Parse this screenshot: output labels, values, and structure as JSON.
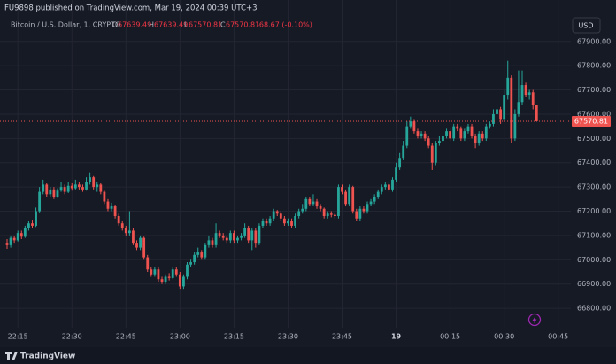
{
  "published_by": "FU9898 published on TradingView.com, Mar 19, 2024 00:39 UTC+3",
  "footer_brand": "TradingView",
  "chart_data": {
    "type": "candlestick",
    "title": "Bitcoin / U.S. Dollar, 1, CRYPTO",
    "ohlc_letters": [
      "O",
      "H",
      "L",
      "C"
    ],
    "change": "-68.67 (-0.10%)",
    "currency": "USD",
    "up_color": "#26a69a",
    "down_color": "#ef5350",
    "grid": true,
    "x": [
      "22:12",
      "22:13",
      "22:14",
      "22:15",
      "22:16",
      "22:17",
      "22:18",
      "22:19",
      "22:20",
      "22:21",
      "22:22",
      "22:23",
      "22:24",
      "22:25",
      "22:26",
      "22:27",
      "22:28",
      "22:29",
      "22:30",
      "22:31",
      "22:32",
      "22:33",
      "22:34",
      "22:35",
      "22:36",
      "22:37",
      "22:38",
      "22:39",
      "22:40",
      "22:41",
      "22:42",
      "22:43",
      "22:44",
      "22:45",
      "22:46",
      "22:47",
      "22:48",
      "22:49",
      "22:50",
      "22:51",
      "22:52",
      "22:53",
      "22:54",
      "22:55",
      "22:56",
      "22:57",
      "22:58",
      "22:59",
      "23:00",
      "23:01",
      "23:02",
      "23:03",
      "23:04",
      "23:05",
      "23:06",
      "23:07",
      "23:08",
      "23:09",
      "23:10",
      "23:11",
      "23:12",
      "23:13",
      "23:14",
      "23:15",
      "23:16",
      "23:17",
      "23:18",
      "23:19",
      "23:20",
      "23:21",
      "23:22",
      "23:23",
      "23:24",
      "23:25",
      "23:26",
      "23:27",
      "23:28",
      "23:29",
      "23:30",
      "23:31",
      "23:32",
      "23:33",
      "23:34",
      "23:35",
      "23:36",
      "23:37",
      "23:38",
      "23:39",
      "23:40",
      "23:41",
      "23:42",
      "23:43",
      "23:44",
      "23:45",
      "23:46",
      "23:47",
      "23:48",
      "23:49",
      "23:50",
      "23:51",
      "23:52",
      "23:53",
      "23:54",
      "23:55",
      "23:56",
      "23:57",
      "23:58",
      "23:59",
      "00:00",
      "00:01",
      "00:02",
      "00:03",
      "00:04",
      "00:05",
      "00:06",
      "00:07",
      "00:08",
      "00:09",
      "00:10",
      "00:11",
      "00:12",
      "00:13",
      "00:14",
      "00:15",
      "00:16",
      "00:17",
      "00:18",
      "00:19",
      "00:20",
      "00:21",
      "00:22",
      "00:23",
      "00:24",
      "00:25",
      "00:26",
      "00:27",
      "00:28",
      "00:29",
      "00:30",
      "00:31",
      "00:32",
      "00:33",
      "00:34",
      "00:35",
      "00:36",
      "00:37",
      "00:38",
      "00:39"
    ],
    "open": [
      67070,
      67060,
      67090,
      67080,
      67110,
      67095,
      67130,
      67150,
      67140,
      67200,
      67280,
      67310,
      67270,
      67290,
      67260,
      67285,
      67300,
      67280,
      67305,
      67295,
      67310,
      67300,
      67290,
      67320,
      67340,
      67300,
      67310,
      67280,
      67240,
      67210,
      67220,
      67180,
      67150,
      67130,
      67110,
      67120,
      67070,
      67050,
      67090,
      67010,
      66960,
      66940,
      66960,
      66920,
      66910,
      66930,
      66925,
      66960,
      66940,
      66890,
      66930,
      66980,
      66990,
      67020,
      67030,
      67010,
      67060,
      67080,
      67060,
      67110,
      67100,
      67090,
      67080,
      67110,
      67080,
      67090,
      67100,
      67130,
      67080,
      67120,
      67070,
      67140,
      67160,
      67150,
      67170,
      67200,
      67190,
      67170,
      67150,
      67160,
      67140,
      67180,
      67200,
      67210,
      67250,
      67230,
      67240,
      67220,
      67210,
      67180,
      67190,
      67185,
      67180,
      67300,
      67280,
      67230,
      67300,
      67200,
      67170,
      67210,
      67200,
      67230,
      67240,
      67260,
      67280,
      67300,
      67310,
      67290,
      67330,
      67380,
      67420,
      67470,
      67550,
      67570,
      67530,
      67510,
      67520,
      67500,
      67470,
      67400,
      67480,
      67490,
      67510,
      67530,
      67500,
      67550,
      67540,
      67500,
      67530,
      67550,
      67510,
      67480,
      67520,
      67500,
      67550,
      67560,
      67600,
      67620,
      67580,
      67680,
      67750,
      67500,
      67600,
      67650,
      67720,
      67680,
      67690,
      67639.49
    ],
    "high": [
      67085,
      67100,
      67100,
      67120,
      67120,
      67140,
      67160,
      67165,
      67215,
      67300,
      67330,
      67315,
      67300,
      67300,
      67295,
      67320,
      67310,
      67320,
      67315,
      67330,
      67320,
      67310,
      67340,
      67360,
      67345,
      67320,
      67315,
      67285,
      67250,
      67235,
      67225,
      67190,
      67160,
      67140,
      67200,
      67130,
      67080,
      67100,
      67095,
      67020,
      66970,
      66970,
      66970,
      66930,
      66940,
      66945,
      66970,
      66970,
      66950,
      66940,
      66990,
      67000,
      67030,
      67050,
      67040,
      67070,
      67100,
      67090,
      67150,
      67120,
      67110,
      67100,
      67120,
      67120,
      67100,
      67110,
      67150,
      67140,
      67130,
      67130,
      67150,
      67170,
      67170,
      67180,
      67210,
      67205,
      67200,
      67180,
      67170,
      67170,
      67190,
      67210,
      67230,
      67260,
      67260,
      67270,
      67250,
      67230,
      67215,
      67200,
      67200,
      67195,
      67310,
      67310,
      67290,
      67310,
      67305,
      67210,
      67220,
      67220,
      67240,
      67250,
      67270,
      67290,
      67310,
      67320,
      67320,
      67340,
      67400,
      67440,
      67490,
      67570,
      67590,
      67580,
      67540,
      67530,
      67530,
      67510,
      67480,
      67490,
      67510,
      67520,
      67540,
      67540,
      67560,
      67560,
      67550,
      67540,
      67560,
      67560,
      67520,
      67530,
      67530,
      67560,
      67570,
      67620,
      67640,
      67630,
      67700,
      67820,
      67760,
      67620,
      67780,
      67780,
      67730,
      67700,
      67700,
      67639.49
    ],
    "low": [
      67045,
      67050,
      67070,
      67075,
      67085,
      67090,
      67120,
      67130,
      67135,
      67195,
      67270,
      67260,
      67260,
      67250,
      67255,
      67280,
      67270,
      67275,
      67285,
      67290,
      67290,
      67280,
      67285,
      67310,
      67290,
      67280,
      67270,
      67230,
      67200,
      67200,
      67170,
      67140,
      67120,
      67100,
      67100,
      67060,
      67040,
      67040,
      67000,
      66950,
      66930,
      66930,
      66910,
      66900,
      66900,
      66915,
      66920,
      66930,
      66880,
      66880,
      66920,
      66970,
      66980,
      67010,
      67000,
      67000,
      67050,
      67050,
      67050,
      67090,
      67080,
      67070,
      67070,
      67070,
      67070,
      67080,
      67090,
      67070,
      67040,
      67050,
      67060,
      67130,
      67140,
      67140,
      67160,
      67180,
      67160,
      67140,
      67140,
      67130,
      67130,
      67170,
      67190,
      67200,
      67220,
      67220,
      67210,
      67200,
      67170,
      67170,
      67175,
      67170,
      67170,
      67270,
      67220,
      67220,
      67190,
      67160,
      67160,
      67190,
      67190,
      67220,
      67230,
      67250,
      67270,
      67290,
      67280,
      67280,
      67320,
      67370,
      67410,
      67460,
      67540,
      67520,
      67500,
      67500,
      67490,
      67460,
      67370,
      67390,
      67470,
      67480,
      67500,
      67490,
      67490,
      67530,
      67490,
      67490,
      67520,
      67500,
      67460,
      67470,
      67490,
      67490,
      67540,
      67550,
      67590,
      67560,
      67570,
      67660,
      67480,
      67490,
      67590,
      67640,
      67670,
      67660,
      67620,
      67570.81
    ],
    "close": [
      67060,
      67090,
      67080,
      67110,
      67095,
      67130,
      67150,
      67140,
      67200,
      67280,
      67310,
      67270,
      67290,
      67260,
      67285,
      67300,
      67280,
      67305,
      67295,
      67310,
      67300,
      67290,
      67320,
      67340,
      67300,
      67310,
      67280,
      67240,
      67210,
      67220,
      67180,
      67150,
      67130,
      67110,
      67120,
      67070,
      67050,
      67090,
      67010,
      66960,
      66940,
      66960,
      66920,
      66910,
      66930,
      66925,
      66960,
      66940,
      66890,
      66930,
      66980,
      66990,
      67020,
      67030,
      67010,
      67060,
      67080,
      67060,
      67110,
      67100,
      67090,
      67080,
      67110,
      67080,
      67090,
      67100,
      67130,
      67080,
      67120,
      67070,
      67140,
      67160,
      67150,
      67170,
      67200,
      67190,
      67170,
      67150,
      67160,
      67140,
      67180,
      67200,
      67210,
      67250,
      67230,
      67240,
      67220,
      67210,
      67180,
      67190,
      67185,
      67180,
      67300,
      67280,
      67230,
      67300,
      67200,
      67170,
      67210,
      67200,
      67230,
      67240,
      67260,
      67280,
      67300,
      67310,
      67290,
      67330,
      67380,
      67420,
      67470,
      67550,
      67570,
      67530,
      67510,
      67520,
      67500,
      67470,
      67400,
      67480,
      67490,
      67510,
      67530,
      67500,
      67550,
      67540,
      67500,
      67530,
      67550,
      67510,
      67480,
      67520,
      67500,
      67550,
      67560,
      67600,
      67620,
      67580,
      67680,
      67750,
      67500,
      67600,
      67650,
      67720,
      67680,
      67690,
      67639.49,
      67570.81
    ],
    "ylim": [
      66720,
      68005
    ],
    "yticks": [
      {
        "value": 66800,
        "label": "66800.00"
      },
      {
        "value": 66900,
        "label": "66900.00"
      },
      {
        "value": 67000,
        "label": "67000.00"
      },
      {
        "value": 67100,
        "label": "67100.00"
      },
      {
        "value": 67200,
        "label": "67200.00"
      },
      {
        "value": 67300,
        "label": "67300.00"
      },
      {
        "value": 67400,
        "label": "67400.00"
      },
      {
        "value": 67500,
        "label": "67500.00"
      },
      {
        "value": 67600,
        "label": "67600.00"
      },
      {
        "value": 67700,
        "label": "67700.00"
      },
      {
        "value": 67800,
        "label": "67800.00"
      },
      {
        "value": 67900,
        "label": "67900.00"
      }
    ],
    "xticks": [
      "22:15",
      "22:30",
      "22:45",
      "23:00",
      "23:15",
      "23:30",
      "23:45",
      {
        "value": "00:00",
        "label": "19"
      },
      "00:15",
      "00:30",
      "00:45"
    ]
  }
}
